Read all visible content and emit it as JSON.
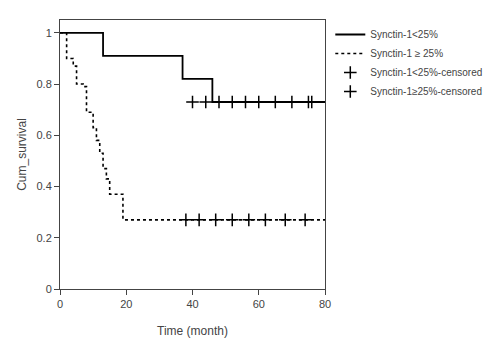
{
  "chart_data": {
    "type": "line",
    "xlabel": "Time (month)",
    "ylabel": "Cum_survival",
    "xlim": [
      0,
      80
    ],
    "ylim": [
      0.0,
      1.05
    ],
    "xticks": [
      0,
      20,
      40,
      60,
      80
    ],
    "yticks": [
      0.0,
      0.2,
      0.4,
      0.6,
      0.8,
      1.0
    ],
    "grid": false,
    "legend": "right",
    "series": [
      {
        "name": "Synctin-1<25%",
        "type": "step",
        "color": "#000000",
        "line_style": "solid",
        "x": [
          0,
          13,
          13,
          37,
          37,
          46,
          46,
          80
        ],
        "values": [
          1.0,
          1.0,
          0.91,
          0.91,
          0.82,
          0.82,
          0.73,
          0.73
        ]
      },
      {
        "name": "Synctin-1 ≥ 25%",
        "type": "step",
        "color": "#000000",
        "line_style": "dotted",
        "x": [
          0,
          2,
          2,
          4,
          4,
          5,
          5,
          7,
          7,
          8,
          8,
          10,
          10,
          11,
          11,
          12,
          12,
          13,
          13,
          14,
          14,
          15,
          15,
          17,
          17,
          19,
          19,
          22,
          22,
          25,
          25,
          26,
          26,
          27,
          27,
          80
        ],
        "values": [
          1.0,
          1.0,
          0.9,
          0.9,
          0.87,
          0.87,
          0.8,
          0.8,
          0.79,
          0.79,
          0.69,
          0.69,
          0.63,
          0.63,
          0.58,
          0.58,
          0.53,
          0.53,
          0.47,
          0.47,
          0.43,
          0.43,
          0.37,
          0.37,
          0.37,
          0.37,
          0.27,
          0.27,
          0.27,
          0.27,
          0.27,
          0.27,
          0.27,
          0.27,
          0.27,
          0.27
        ]
      },
      {
        "name": "Synctin-1<25%-censored",
        "type": "scatter",
        "color": "#000000",
        "marker": "plus",
        "x": [
          40,
          44,
          48,
          52,
          56,
          60,
          65,
          70,
          75,
          76
        ],
        "values": [
          0.73,
          0.73,
          0.73,
          0.73,
          0.73,
          0.73,
          0.73,
          0.73,
          0.73,
          0.73
        ]
      },
      {
        "name": "Synctin-1≥25%-censored",
        "type": "scatter",
        "color": "#000000",
        "marker": "plus",
        "x": [
          38,
          42,
          47,
          52,
          57,
          62,
          68,
          74
        ],
        "values": [
          0.27,
          0.27,
          0.27,
          0.27,
          0.27,
          0.27,
          0.27,
          0.27
        ]
      }
    ]
  }
}
